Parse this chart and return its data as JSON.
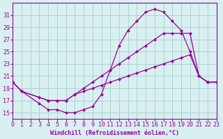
{
  "background_color": "#d8f0f0",
  "line_color": "#990099",
  "grid_color": "#aacccc",
  "xlabel": "Windchill (Refroidissement éolien,°C)",
  "xlim": [
    0,
    23
  ],
  "ylim": [
    14,
    33
  ],
  "yticks": [
    15,
    17,
    19,
    21,
    23,
    25,
    27,
    29,
    31
  ],
  "xticks": [
    0,
    1,
    2,
    3,
    4,
    5,
    6,
    7,
    8,
    9,
    10,
    11,
    12,
    13,
    14,
    15,
    16,
    17,
    18,
    19,
    20,
    21,
    22,
    23
  ],
  "curves": [
    {
      "x": [
        0,
        1,
        3,
        4,
        5,
        6,
        7,
        8,
        9,
        10,
        11,
        12,
        13,
        14,
        15,
        16,
        17,
        18,
        19,
        20,
        21,
        22,
        23
      ],
      "y": [
        20,
        18.5,
        16.5,
        15.5,
        15.5,
        15,
        15,
        15.5,
        16,
        18,
        22,
        26,
        28.5,
        30,
        31.5,
        32,
        31.5,
        30,
        28.5,
        25,
        21,
        20,
        20
      ]
    },
    {
      "x": [
        0,
        1,
        3,
        4,
        5,
        6,
        7,
        8,
        9,
        10,
        11,
        12,
        13,
        14,
        15,
        16,
        17,
        18,
        19,
        20,
        21,
        22,
        23
      ],
      "y": [
        20,
        18.5,
        17.5,
        17,
        17,
        17,
        18,
        19,
        20,
        21,
        22,
        23,
        24,
        25,
        26,
        27,
        28,
        28,
        28,
        28,
        21,
        20,
        20
      ]
    },
    {
      "x": [
        0,
        1,
        3,
        4,
        5,
        6,
        7,
        8,
        9,
        10,
        11,
        12,
        13,
        14,
        15,
        16,
        17,
        18,
        19,
        20,
        21,
        22,
        23
      ],
      "y": [
        20,
        18.5,
        17.5,
        17,
        17,
        17,
        18,
        18.5,
        19,
        19.5,
        20,
        20.5,
        21,
        21.5,
        22,
        22.5,
        23,
        23.5,
        24,
        24.5,
        21,
        20,
        20
      ]
    }
  ]
}
